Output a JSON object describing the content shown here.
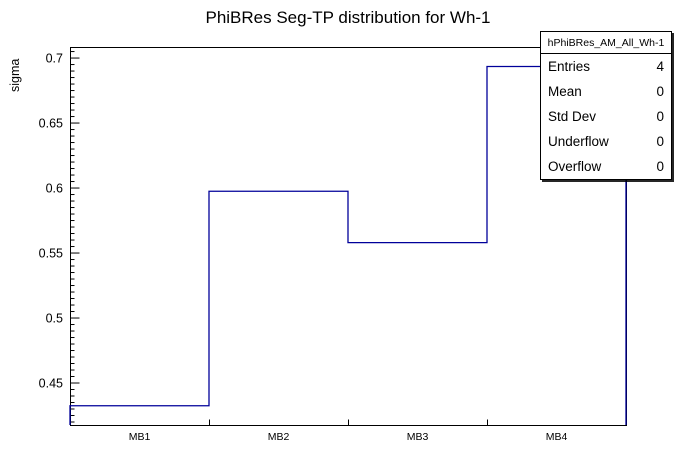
{
  "chart_data": {
    "type": "bar",
    "subtype": "step-histogram",
    "title": "PhiBRes Seg-TP distribution for Wh-1",
    "categories": [
      "MB1",
      "MB2",
      "MB3",
      "MB4"
    ],
    "values": [
      0.4325,
      0.5975,
      0.558,
      0.6935
    ],
    "xlabel": "",
    "ylabel": "sigma",
    "ylim": [
      0.4177,
      0.7085
    ],
    "yticks": [
      0.45,
      0.5,
      0.55,
      0.6,
      0.65,
      0.7
    ],
    "minor_tick_step": 0.005,
    "grid": false,
    "legend_position": "none",
    "line_color": "#00009a",
    "frame_color": "#000000",
    "background": "#ffffff"
  },
  "stats_box": {
    "header": "hPhiBRes_AM_All_Wh-1",
    "rows": [
      {
        "label": "Entries",
        "value": "4"
      },
      {
        "label": "Mean",
        "value": "0"
      },
      {
        "label": "Std Dev",
        "value": "0"
      },
      {
        "label": "Underflow",
        "value": "0"
      },
      {
        "label": "Overflow",
        "value": "0"
      }
    ]
  }
}
